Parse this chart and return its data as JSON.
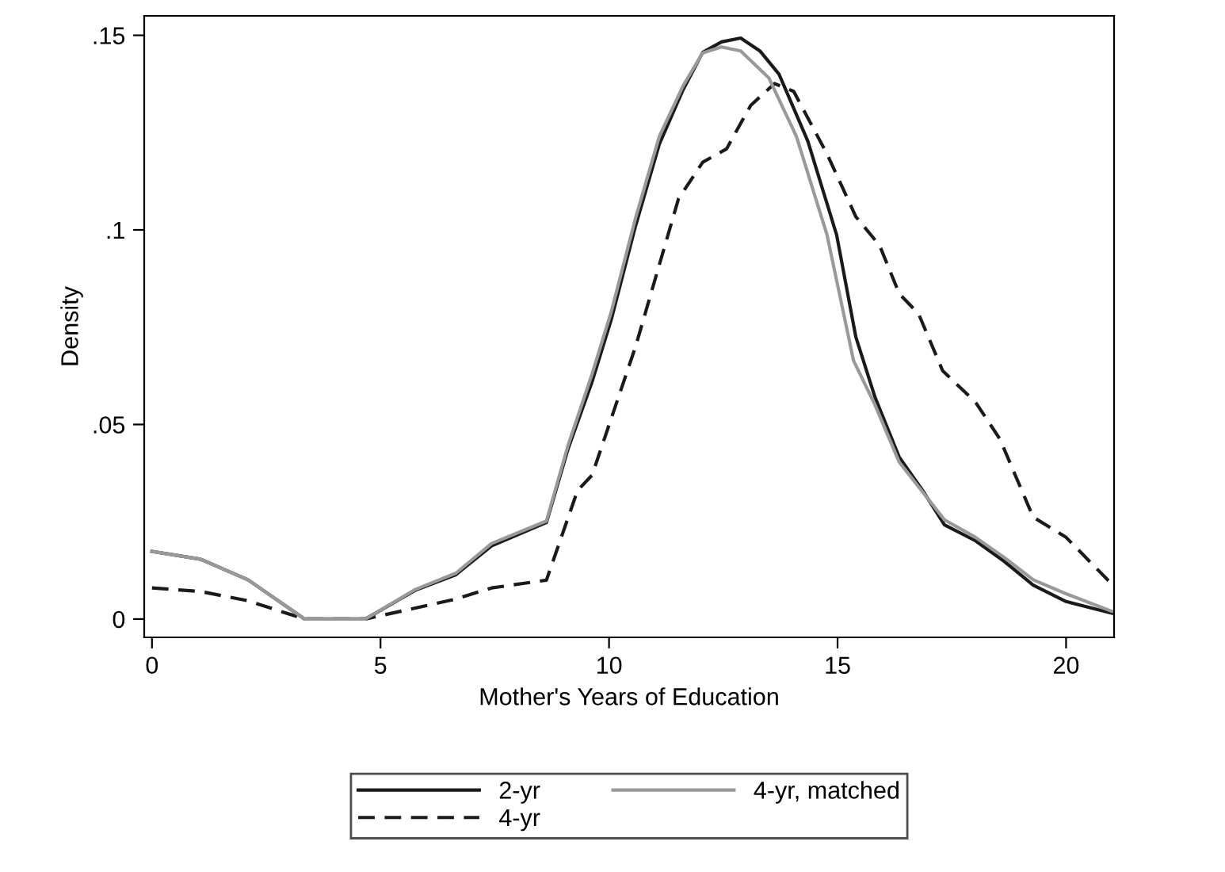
{
  "chart_data": {
    "type": "line",
    "xlabel": "Mother's Years of Education",
    "ylabel": "Density",
    "xlim": [
      -0.17,
      21.05
    ],
    "ylim": [
      -0.0047,
      0.155
    ],
    "xticks": [
      0,
      5,
      10,
      15,
      20
    ],
    "yticks": [
      0,
      {
        "value": 0.05,
        "label": ".05"
      },
      {
        "value": 0.1,
        "label": ".1"
      },
      {
        "value": 0.15,
        "label": ".15"
      }
    ],
    "grid": false,
    "legend": "bottom",
    "marker": "none",
    "series": [
      {
        "name": "2-yr",
        "color": "#1a1a1a",
        "line_style": "solid",
        "x": [
          0,
          1.06,
          2.1,
          3.34,
          4.67,
          5.76,
          6.65,
          7.43,
          8.63,
          9.1,
          9.63,
          10.05,
          10.58,
          11.1,
          11.62,
          12.05,
          12.46,
          12.88,
          13.3,
          13.72,
          14.35,
          14.98,
          15.4,
          15.82,
          16.35,
          16.87,
          17.34,
          18.02,
          18.65,
          19.28,
          20,
          21
        ],
        "values": [
          0.0174,
          0.0154,
          0.0101,
          0,
          0,
          0.0074,
          0.0114,
          0.0188,
          0.0248,
          0.0436,
          0.061,
          0.077,
          0.101,
          0.122,
          0.136,
          0.1456,
          0.1483,
          0.1493,
          0.146,
          0.14,
          0.1228,
          0.0987,
          0.0725,
          0.057,
          0.0416,
          0.0329,
          0.0242,
          0.0201,
          0.0148,
          0.0087,
          0.0045,
          0.0015
        ]
      },
      {
        "name": "4-yr",
        "color": "#1a1a1a",
        "line_style": "dashed",
        "x": [
          0,
          1.06,
          2.1,
          3.34,
          4.67,
          6.6,
          7.43,
          8.63,
          9.31,
          9.63,
          10.58,
          11.52,
          12.05,
          12.57,
          13.1,
          13.62,
          14.04,
          14.77,
          15.4,
          15.92,
          16.35,
          16.77,
          17.3,
          18.02,
          18.55,
          19.28,
          20,
          21
        ],
        "values": [
          0.008,
          0.0071,
          0.0047,
          0,
          0,
          0.005,
          0.008,
          0.01,
          0.033,
          0.037,
          0.07,
          0.108,
          0.1174,
          0.1208,
          0.132,
          0.1376,
          0.1356,
          0.1195,
          0.1034,
          0.096,
          0.0836,
          0.0785,
          0.0638,
          0.0557,
          0.0463,
          0.0262,
          0.021,
          0.009
        ]
      },
      {
        "name": "4-yr, matched",
        "color": "#999999",
        "line_style": "solid",
        "x": [
          0,
          1.06,
          2.1,
          3.34,
          4.67,
          5.76,
          6.65,
          7.43,
          8.63,
          9.1,
          9.63,
          10.05,
          10.58,
          11.1,
          11.62,
          12.05,
          12.46,
          12.88,
          13.5,
          14.1,
          14.77,
          15.35,
          15.82,
          16.35,
          17.34,
          18.02,
          18.65,
          19.28,
          20,
          21
        ],
        "values": [
          0.0174,
          0.0154,
          0.0101,
          0,
          0,
          0.0076,
          0.0118,
          0.0194,
          0.0252,
          0.0445,
          0.063,
          0.079,
          0.103,
          0.124,
          0.137,
          0.1455,
          0.147,
          0.146,
          0.139,
          0.124,
          0.0987,
          0.0664,
          0.055,
          0.0403,
          0.0255,
          0.021,
          0.0158,
          0.0101,
          0.0065,
          0.002
        ]
      }
    ]
  }
}
